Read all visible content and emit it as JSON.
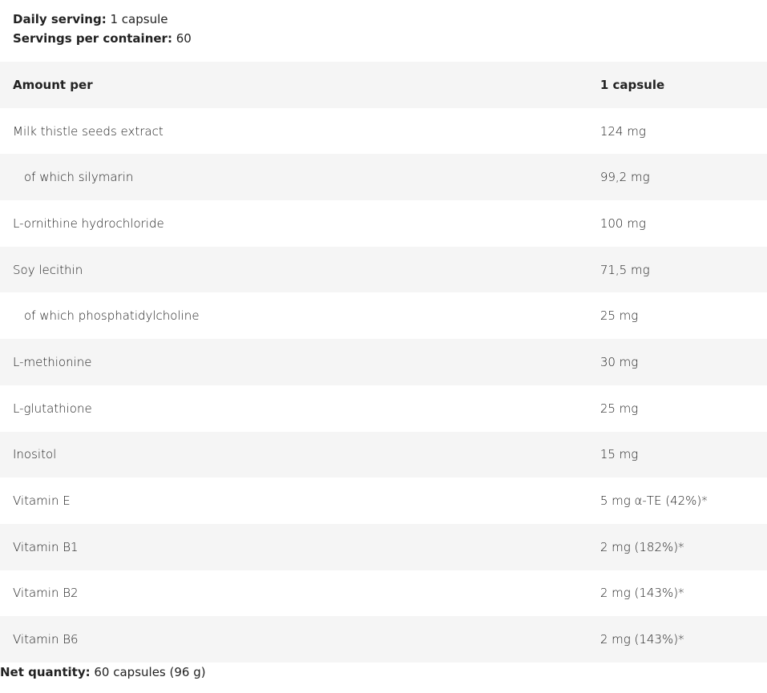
{
  "info": {
    "daily_serving_label": "Daily serving:",
    "daily_serving_value": "1 capsule",
    "servings_label": "Servings per container:",
    "servings_value": "60"
  },
  "table": {
    "header": {
      "name": "Amount per",
      "value": "1 capsule"
    },
    "rows": [
      {
        "name": "Milk thistle seeds extract",
        "value": "124 mg",
        "indent": false
      },
      {
        "name": "of which silymarin",
        "value": "99,2 mg",
        "indent": true
      },
      {
        "name": "L-ornithine hydrochloride",
        "value": "100 mg",
        "indent": false
      },
      {
        "name": "Soy lecithin",
        "value": "71,5 mg",
        "indent": false
      },
      {
        "name": "of which phosphatidylcholine",
        "value": "25 mg",
        "indent": true
      },
      {
        "name": "L-methionine",
        "value": "30 mg",
        "indent": false
      },
      {
        "name": "L-glutathione",
        "value": "25 mg",
        "indent": false
      },
      {
        "name": "Inositol",
        "value": "15 mg",
        "indent": false
      },
      {
        "name": "Vitamin E",
        "value": "5 mg α-TE (42%)*",
        "indent": false
      },
      {
        "name": "Vitamin B1",
        "value": "2 mg (182%)*",
        "indent": false
      },
      {
        "name": "Vitamin B2",
        "value": "2 mg (143%)*",
        "indent": false
      },
      {
        "name": "Vitamin B6",
        "value": "2 mg (143%)*",
        "indent": false
      }
    ]
  },
  "footer": {
    "net_label": "Net quantity:",
    "net_value": "60 capsules (96 g)"
  }
}
